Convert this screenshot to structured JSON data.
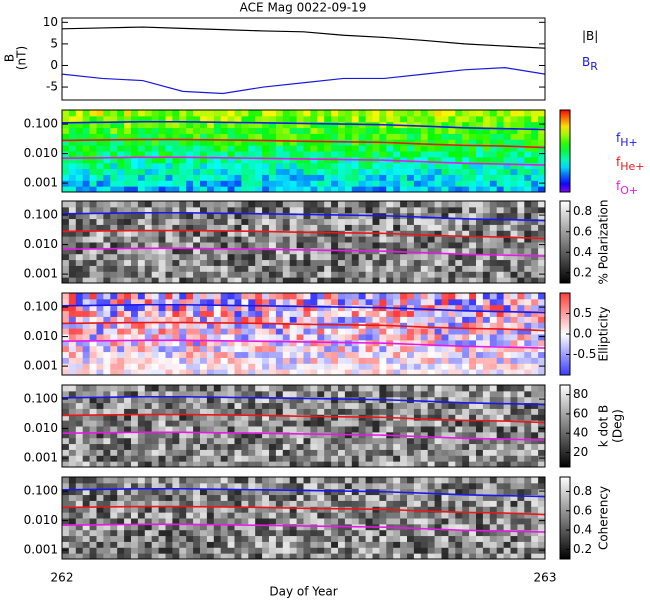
{
  "chart_data": [
    {
      "type": "line",
      "title": "ACE Mag 0022-09-19",
      "ylabel": [
        "B",
        "(nT)"
      ],
      "x": [
        262.0,
        262.083,
        262.167,
        262.25,
        262.333,
        262.417,
        262.5,
        262.583,
        262.667,
        262.75,
        262.833,
        262.917,
        263.0
      ],
      "series": [
        {
          "name": "|B|",
          "color": "#000000",
          "values": [
            8.5,
            8.7,
            8.9,
            8.6,
            8.3,
            8.0,
            7.8,
            7.0,
            6.5,
            5.8,
            5.0,
            4.5,
            4.0
          ]
        },
        {
          "name": "B",
          "name_sub": "R",
          "color": "#1a1adc",
          "values": [
            -2,
            -3,
            -3.5,
            -6,
            -6.5,
            -5,
            -4,
            -3,
            -3,
            -2,
            -1,
            -0.5,
            -2
          ]
        }
      ],
      "ylim": [
        -8,
        11
      ],
      "yticks": [
        -5,
        0,
        5,
        10
      ],
      "xlim": [
        262,
        263
      ]
    },
    {
      "type": "spectrogram",
      "colormap": "rainbow",
      "log_y": true,
      "ylim": [
        0.0005,
        0.3
      ],
      "yticks": [
        {
          "value": 0.001,
          "label": "0.001"
        },
        {
          "value": 0.01,
          "label": "0.010"
        },
        {
          "value": 0.1,
          "label": "0.100"
        }
      ],
      "xlim": [
        262,
        263
      ]
    },
    {
      "type": "spectrogram",
      "colormap": "gray",
      "log_y": true,
      "ylim": [
        0.0005,
        0.3
      ],
      "yticks": [
        {
          "value": 0.001,
          "label": "0.001"
        },
        {
          "value": 0.01,
          "label": "0.010"
        },
        {
          "value": 0.1,
          "label": "0.100"
        }
      ],
      "xlim": [
        262,
        263
      ],
      "colorbar_label": "% Polarization",
      "clim": [
        0.1,
        0.9
      ],
      "colorbar_ticks": [
        0.2,
        0.4,
        0.6,
        0.8
      ]
    },
    {
      "type": "spectrogram",
      "colormap": "bwr",
      "log_y": true,
      "ylim": [
        0.0005,
        0.3
      ],
      "yticks": [
        {
          "value": 0.001,
          "label": "0.001"
        },
        {
          "value": 0.01,
          "label": "0.010"
        },
        {
          "value": 0.1,
          "label": "0.100"
        }
      ],
      "xlim": [
        262,
        263
      ],
      "colorbar_label": "Ellipticity",
      "clim": [
        -1,
        1
      ],
      "colorbar_ticks": [
        -0.5,
        {
          "value": 0,
          "label": "0.0"
        },
        0.5
      ]
    },
    {
      "type": "spectrogram",
      "colormap": "gray",
      "log_y": true,
      "ylim": [
        0.0005,
        0.3
      ],
      "yticks": [
        {
          "value": 0.001,
          "label": "0.001"
        },
        {
          "value": 0.01,
          "label": "0.010"
        },
        {
          "value": 0.1,
          "label": "0.100"
        }
      ],
      "xlim": [
        262,
        263
      ],
      "colorbar_label": [
        "k dot B",
        "(Deg)"
      ],
      "clim": [
        5,
        90
      ],
      "colorbar_ticks": [
        20,
        40,
        60,
        80
      ]
    },
    {
      "type": "spectrogram",
      "colormap": "gray",
      "log_y": true,
      "ylim": [
        0.0005,
        0.3
      ],
      "yticks": [
        {
          "value": 0.001,
          "label": "0.001"
        },
        {
          "value": 0.01,
          "label": "0.010"
        },
        {
          "value": 0.1,
          "label": "0.100"
        }
      ],
      "xlim": [
        262,
        263
      ],
      "colorbar_label": "Coherency",
      "clim": [
        0.1,
        0.95
      ],
      "colorbar_ticks": [
        0.2,
        0.4,
        0.6,
        0.8
      ],
      "xticks": [
        262,
        263
      ],
      "xlabel": "Day of Year"
    }
  ],
  "gyrofrequencies": {
    "x": [
      262.0,
      262.083,
      262.167,
      262.25,
      262.333,
      262.417,
      262.5,
      262.583,
      262.667,
      262.75,
      262.833,
      262.917,
      263.0
    ],
    "series": [
      {
        "name": "f",
        "name_sub": "H+",
        "color": "#1a1ae6",
        "values": [
          0.11,
          0.115,
          0.12,
          0.12,
          0.115,
          0.11,
          0.105,
          0.1,
          0.095,
          0.085,
          0.075,
          0.07,
          0.065
        ]
      },
      {
        "name": "f",
        "name_sub": "He+",
        "color": "#e61a1a",
        "values": [
          0.028,
          0.029,
          0.03,
          0.03,
          0.029,
          0.028,
          0.026,
          0.025,
          0.024,
          0.021,
          0.019,
          0.018,
          0.016
        ]
      },
      {
        "name": "f",
        "name_sub": "O+",
        "color": "#e61ae6",
        "values": [
          0.007,
          0.0072,
          0.0075,
          0.0075,
          0.0072,
          0.0069,
          0.0066,
          0.0063,
          0.006,
          0.0053,
          0.0047,
          0.0044,
          0.0041
        ]
      }
    ]
  }
}
